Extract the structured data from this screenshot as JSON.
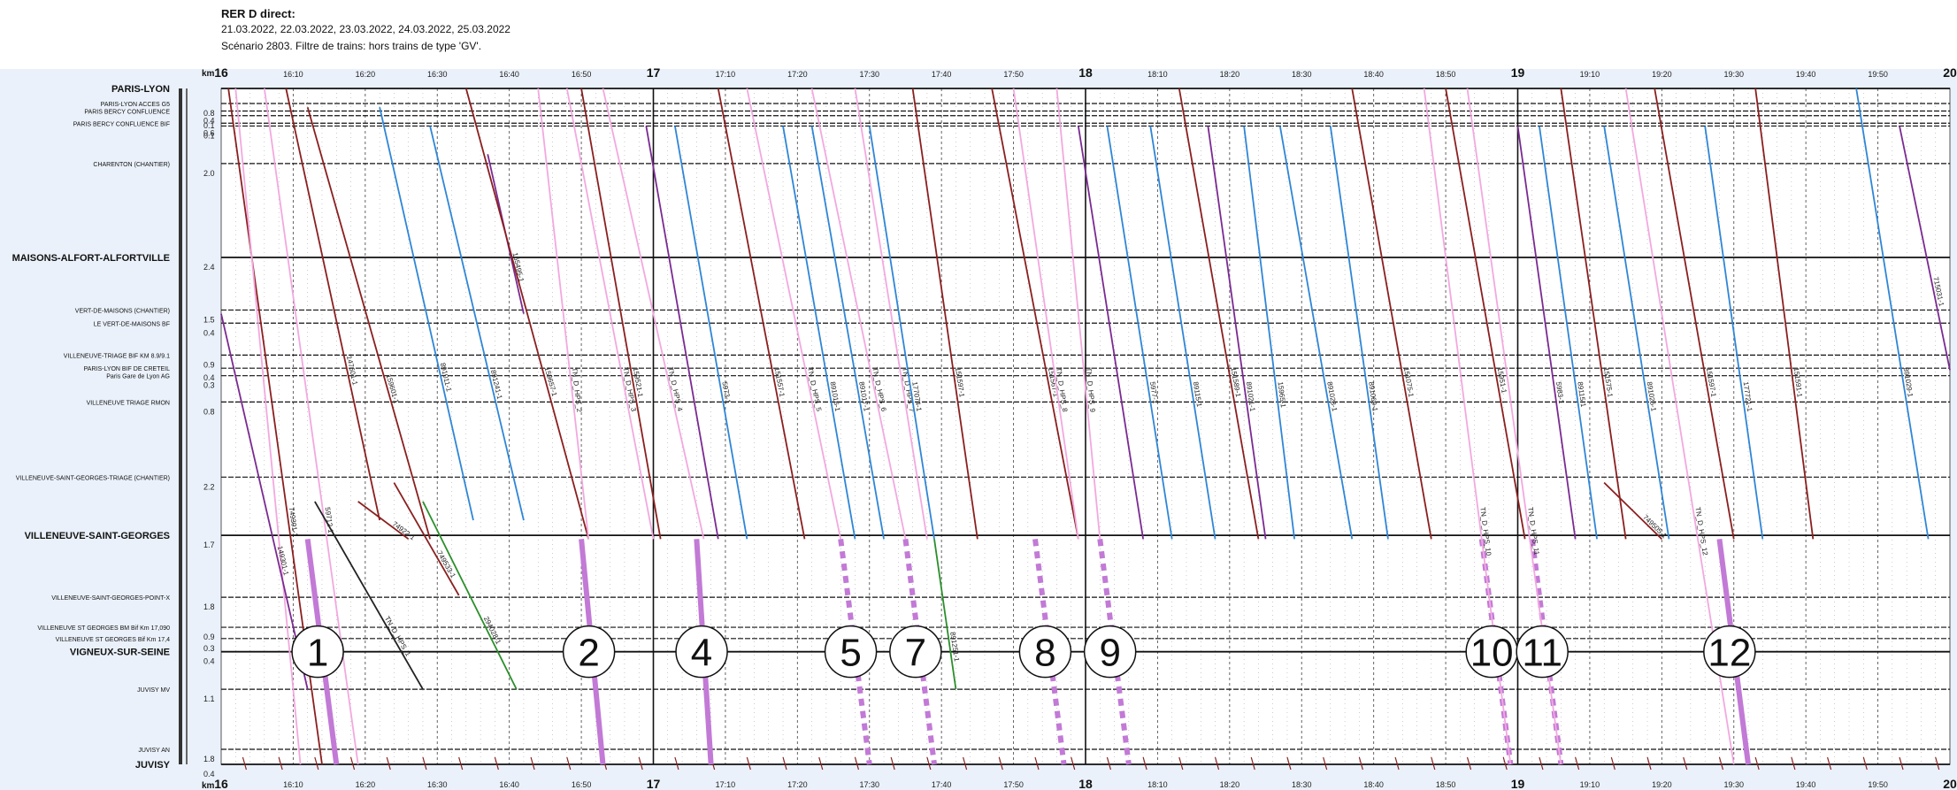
{
  "header": {
    "title": "RER D direct:",
    "dates": "21.03.2022, 22.03.2022, 23.03.2022, 24.03.2022, 25.03.2022",
    "scenario": "Scénario 2803. Filtre de trains: hors trains de type 'GV'."
  },
  "colors": {
    "background": "#eaf1fa",
    "plot_background": "#ffffff",
    "brown": "#8b1f1f",
    "pink": "#f2a9df",
    "blue": "#2f86d6",
    "purple": "#7b2a92",
    "lilac_highlight": "#c27ad6",
    "green": "#2a8f2a",
    "black": "#222222"
  },
  "chart_data": {
    "type": "line",
    "unit_label": "km",
    "x_axis": {
      "start": "16:00",
      "end": "20:00",
      "hour_labels": [
        "16",
        "17",
        "18",
        "19",
        "20"
      ],
      "minute_labels": [
        "16:10",
        "16:20",
        "16:30",
        "16:40",
        "16:50",
        "17:10",
        "17:20",
        "17:30",
        "17:40",
        "17:50",
        "18:10",
        "18:20",
        "18:30",
        "18:40",
        "18:50",
        "19:10",
        "19:20",
        "19:30",
        "19:40",
        "19:50"
      ]
    },
    "stations": [
      {
        "name": "PARIS-LYON",
        "pos": 0,
        "major": true,
        "dist": ""
      },
      {
        "name": "PARIS-LYON ACCES G5",
        "pos": 0.08,
        "major": false,
        "dist": "0.8"
      },
      {
        "name": "PARIS BERCY CONFLUENCE",
        "pos": 0.12,
        "major": false,
        "dist": "0.4"
      },
      {
        "name": "",
        "pos": 0.145,
        "major": false,
        "dist": "0.1"
      },
      {
        "name": "PARIS BERCY CONFLUENCE BIF",
        "pos": 0.185,
        "major": false,
        "dist": "0.6"
      },
      {
        "name": "",
        "pos": 0.2,
        "major": false,
        "dist": "0.1"
      },
      {
        "name": "CHARENTON (CHANTIER)",
        "pos": 0.4,
        "major": false,
        "dist": "2.0"
      },
      {
        "name": "MAISONS-ALFORT-ALFORTVILLE",
        "pos": 0.9,
        "major": true,
        "dist": "2.4"
      },
      {
        "name": "VERT-DE-MAISONS (CHANTIER)",
        "pos": 1.18,
        "major": false,
        "dist": "1.5"
      },
      {
        "name": "LE VERT-DE-MAISONS BF",
        "pos": 1.25,
        "major": false,
        "dist": "0.4"
      },
      {
        "name": "VILLENEUVE-TRIAGE BIF KM 8.9/9.1",
        "pos": 1.42,
        "major": false,
        "dist": "0.9"
      },
      {
        "name": "PARIS-LYON BIF DE CRETEIL",
        "pos": 1.49,
        "major": false,
        "dist": "0.4"
      },
      {
        "name": "Paris Gare de Lyon AG",
        "pos": 1.53,
        "major": false,
        "dist": "0.3"
      },
      {
        "name": "VILLENEUVE TRIAGE RMON",
        "pos": 1.67,
        "major": false,
        "dist": "0.8"
      },
      {
        "name": "VILLENEUVE-SAINT-GEORGES-TRIAGE (CHANTIER)",
        "pos": 2.07,
        "major": false,
        "dist": "2.2"
      },
      {
        "name": "VILLENEUVE-SAINT-GEORGES",
        "pos": 2.38,
        "major": true,
        "dist": "1.7"
      },
      {
        "name": "VILLENEUVE-SAINT-GEORGES-POINT-X",
        "pos": 2.71,
        "major": false,
        "dist": "1.8"
      },
      {
        "name": "VILLENEUVE ST GEORGES BM Bif Km 17,090",
        "pos": 2.87,
        "major": false,
        "dist": "0.9"
      },
      {
        "name": "VILLENEUVE ST GEORGES Bif Km 17,4",
        "pos": 2.93,
        "major": false,
        "dist": "0.3"
      },
      {
        "name": "VIGNEUX-SUR-SEINE",
        "pos": 3.0,
        "major": true,
        "dist": "0.4"
      },
      {
        "name": "JUVISY MV",
        "pos": 3.2,
        "major": false,
        "dist": "1.1"
      },
      {
        "name": "JUVISY AN",
        "pos": 3.52,
        "major": false,
        "dist": "1.8"
      },
      {
        "name": "JUVISY",
        "pos": 3.6,
        "major": true,
        "dist": "0.4"
      }
    ],
    "series": [
      {
        "color": "brown",
        "start": "16:01",
        "end": "16:14",
        "from": 0.0,
        "to": 3.6,
        "label": "749301-1"
      },
      {
        "color": "pink",
        "start": "16:02",
        "end": "16:11",
        "from": 0.0,
        "to": 3.6,
        "label": ""
      },
      {
        "color": "purple",
        "start": "16:00",
        "end": "16:12",
        "from": 1.2,
        "to": 3.2,
        "label": "149301-1"
      },
      {
        "color": "brown",
        "start": "16:09",
        "end": "16:22",
        "from": 0.0,
        "to": 2.3,
        "label": "147601-1"
      },
      {
        "color": "pink",
        "start": "16:06",
        "end": "16:19",
        "from": 0.0,
        "to": 3.6,
        "label": "59712-1"
      },
      {
        "color": "brown",
        "start": "16:12",
        "end": "16:29",
        "from": 0.1,
        "to": 2.4,
        "label": "159601-1"
      },
      {
        "color": "blue",
        "start": "16:22",
        "end": "16:35",
        "from": 0.1,
        "to": 2.3,
        "label": "891011-1"
      },
      {
        "color": "blue",
        "start": "16:29",
        "end": "16:42",
        "from": 0.2,
        "to": 2.3,
        "label": "891241-1"
      },
      {
        "color": "purple",
        "start": "16:37",
        "end": "16:42",
        "from": 0.35,
        "to": 1.2,
        "label": "165495-1"
      },
      {
        "color": "brown",
        "start": "16:34",
        "end": "16:51",
        "from": 0.0,
        "to": 2.4,
        "label": "159657-1"
      },
      {
        "color": "pink",
        "start": "16:44",
        "end": "16:51",
        "from": 0.0,
        "to": 2.4,
        "label": "TN_D_HPS_2"
      },
      {
        "color": "pink",
        "start": "16:48",
        "end": "17:00",
        "from": 0.0,
        "to": 2.4,
        "label": "TN_D_HPS_3"
      },
      {
        "color": "brown",
        "start": "16:50",
        "end": "17:01",
        "from": 0.0,
        "to": 2.4,
        "label": "159521-1"
      },
      {
        "color": "pink",
        "start": "16:53",
        "end": "17:07",
        "from": 0.0,
        "to": 2.4,
        "label": "TN_D_HPS_4"
      },
      {
        "color": "purple",
        "start": "16:59",
        "end": "17:09",
        "from": 0.2,
        "to": 2.4,
        "label": ""
      },
      {
        "color": "blue",
        "start": "17:03",
        "end": "17:13",
        "from": 0.2,
        "to": 2.4,
        "label": "5973-1"
      },
      {
        "color": "brown",
        "start": "17:09",
        "end": "17:21",
        "from": 0.0,
        "to": 2.4,
        "label": "151557-1"
      },
      {
        "color": "pink",
        "start": "17:13",
        "end": "17:26",
        "from": 0.0,
        "to": 2.4,
        "label": "TN_D_HPS_5"
      },
      {
        "color": "blue",
        "start": "17:18",
        "end": "17:28",
        "from": 0.2,
        "to": 2.4,
        "label": "891016-1"
      },
      {
        "color": "pink",
        "start": "17:22",
        "end": "17:35",
        "from": 0.0,
        "to": 2.4,
        "label": "TN_D_HPS_6"
      },
      {
        "color": "blue",
        "start": "17:22",
        "end": "17:32",
        "from": 0.2,
        "to": 2.4,
        "label": "891017-1"
      },
      {
        "color": "pink",
        "start": "17:28",
        "end": "17:38",
        "from": 0.0,
        "to": 2.4,
        "label": "TN_D_HPS_7"
      },
      {
        "color": "blue",
        "start": "17:30",
        "end": "17:39",
        "from": 0.2,
        "to": 2.4,
        "label": "177074-1"
      },
      {
        "color": "brown",
        "start": "17:36",
        "end": "17:45",
        "from": 0.0,
        "to": 2.4,
        "label": "151597-1"
      },
      {
        "color": "brown",
        "start": "17:47",
        "end": "17:59",
        "from": 0.0,
        "to": 2.4,
        "label": "151567-1"
      },
      {
        "color": "pink",
        "start": "17:50",
        "end": "17:59",
        "from": 0.0,
        "to": 2.4,
        "label": "TN_D_HPS_8"
      },
      {
        "color": "pink",
        "start": "17:56",
        "end": "18:02",
        "from": 0.0,
        "to": 2.4,
        "label": "TN_D_HPS_9"
      },
      {
        "color": "purple",
        "start": "17:59",
        "end": "18:08",
        "from": 0.2,
        "to": 2.4,
        "label": ""
      },
      {
        "color": "blue",
        "start": "18:03",
        "end": "18:12",
        "from": 0.2,
        "to": 2.4,
        "label": "5977-1"
      },
      {
        "color": "blue",
        "start": "18:09",
        "end": "18:18",
        "from": 0.2,
        "to": 2.4,
        "label": "89115-1"
      },
      {
        "color": "brown",
        "start": "18:13",
        "end": "18:24",
        "from": 0.0,
        "to": 2.4,
        "label": "151589-1"
      },
      {
        "color": "purple",
        "start": "18:17",
        "end": "18:25",
        "from": 0.2,
        "to": 2.4,
        "label": "891021-1"
      },
      {
        "color": "blue",
        "start": "18:22",
        "end": "18:29",
        "from": 0.2,
        "to": 2.4,
        "label": "15965-1"
      },
      {
        "color": "blue",
        "start": "18:27",
        "end": "18:37",
        "from": 0.2,
        "to": 2.4,
        "label": "891023-1"
      },
      {
        "color": "blue",
        "start": "18:34",
        "end": "18:42",
        "from": 0.2,
        "to": 2.4,
        "label": "891069-1"
      },
      {
        "color": "brown",
        "start": "18:37",
        "end": "18:48",
        "from": 0.0,
        "to": 2.4,
        "label": "151075-1"
      },
      {
        "color": "brown",
        "start": "18:50",
        "end": "19:01",
        "from": 0.0,
        "to": 2.4,
        "label": "15951-1"
      },
      {
        "color": "pink",
        "start": "18:47",
        "end": "18:59",
        "from": 0.0,
        "to": 3.6,
        "label": "TN_D_HPS_10"
      },
      {
        "color": "pink",
        "start": "18:53",
        "end": "19:06",
        "from": 0.0,
        "to": 3.6,
        "label": "TN_D_HPS_11"
      },
      {
        "color": "purple",
        "start": "19:00",
        "end": "19:08",
        "from": 0.2,
        "to": 2.4,
        "label": "5983-1"
      },
      {
        "color": "blue",
        "start": "19:03",
        "end": "19:11",
        "from": 0.2,
        "to": 2.4,
        "label": "89115-1"
      },
      {
        "color": "brown",
        "start": "19:06",
        "end": "19:15",
        "from": 0.0,
        "to": 2.4,
        "label": "151575-1"
      },
      {
        "color": "blue",
        "start": "19:12",
        "end": "19:21",
        "from": 0.2,
        "to": 2.4,
        "label": "891025-1"
      },
      {
        "color": "pink",
        "start": "19:15",
        "end": "19:30",
        "from": 0.0,
        "to": 3.6,
        "label": "TN_D_HPS_12"
      },
      {
        "color": "brown",
        "start": "19:19",
        "end": "19:30",
        "from": 0.0,
        "to": 2.4,
        "label": "151597-1"
      },
      {
        "color": "blue",
        "start": "19:26",
        "end": "19:34",
        "from": 0.2,
        "to": 2.4,
        "label": "177721-1"
      },
      {
        "color": "brown",
        "start": "19:33",
        "end": "19:41",
        "from": 0.0,
        "to": 2.4,
        "label": "151591-1"
      },
      {
        "color": "blue",
        "start": "19:47",
        "end": "19:57",
        "from": 0.0,
        "to": 2.4,
        "label": "891029-1"
      },
      {
        "color": "purple",
        "start": "19:53",
        "end": "20:00",
        "from": 0.2,
        "to": 1.5,
        "label": "715031-1"
      },
      {
        "color": "black",
        "start": "16:13",
        "end": "16:28",
        "from": 2.2,
        "to": 3.2,
        "label": "TN_D_HPS_1"
      },
      {
        "color": "green",
        "start": "16:28",
        "end": "16:41",
        "from": 2.2,
        "to": 3.2,
        "label": "294028-1"
      },
      {
        "color": "green",
        "start": "17:39",
        "end": "17:42",
        "from": 2.4,
        "to": 3.2,
        "label": "891251-1"
      },
      {
        "color": "brown",
        "start": "16:19",
        "end": "16:26",
        "from": 2.2,
        "to": 2.4,
        "label": "74922-1"
      },
      {
        "color": "brown",
        "start": "16:24",
        "end": "16:33",
        "from": 2.1,
        "to": 2.7,
        "label": "749533-1"
      },
      {
        "color": "brown",
        "start": "19:12",
        "end": "19:20",
        "from": 2.1,
        "to": 2.4,
        "label": "749505-1"
      }
    ],
    "highlights": [
      {
        "label": "1",
        "start": "16:12",
        "end": "16:16",
        "from": 2.4,
        "to": 3.6,
        "style": "solid"
      },
      {
        "label": "2",
        "start": "16:50",
        "end": "16:53",
        "from": 2.4,
        "to": 3.6,
        "style": "solid"
      },
      {
        "label": "4",
        "start": "17:06",
        "end": "17:08",
        "from": 2.4,
        "to": 3.6,
        "style": "solid"
      },
      {
        "label": "5",
        "start": "17:26",
        "end": "17:30",
        "from": 2.4,
        "to": 3.6,
        "style": "dashed"
      },
      {
        "label": "7",
        "start": "17:35",
        "end": "17:39",
        "from": 2.4,
        "to": 3.6,
        "style": "dashed"
      },
      {
        "label": "8",
        "start": "17:53",
        "end": "17:57",
        "from": 2.4,
        "to": 3.6,
        "style": "dashed"
      },
      {
        "label": "9",
        "start": "18:02",
        "end": "18:06",
        "from": 2.4,
        "to": 3.6,
        "style": "dashed"
      },
      {
        "label": "10",
        "start": "18:55",
        "end": "18:59",
        "from": 2.4,
        "to": 3.6,
        "style": "dashed"
      },
      {
        "label": "11",
        "start": "19:02",
        "end": "19:06",
        "from": 2.4,
        "to": 3.6,
        "style": "dashed"
      },
      {
        "label": "12",
        "start": "19:28",
        "end": "19:32",
        "from": 2.4,
        "to": 3.6,
        "style": "solid"
      }
    ],
    "grid": true
  }
}
